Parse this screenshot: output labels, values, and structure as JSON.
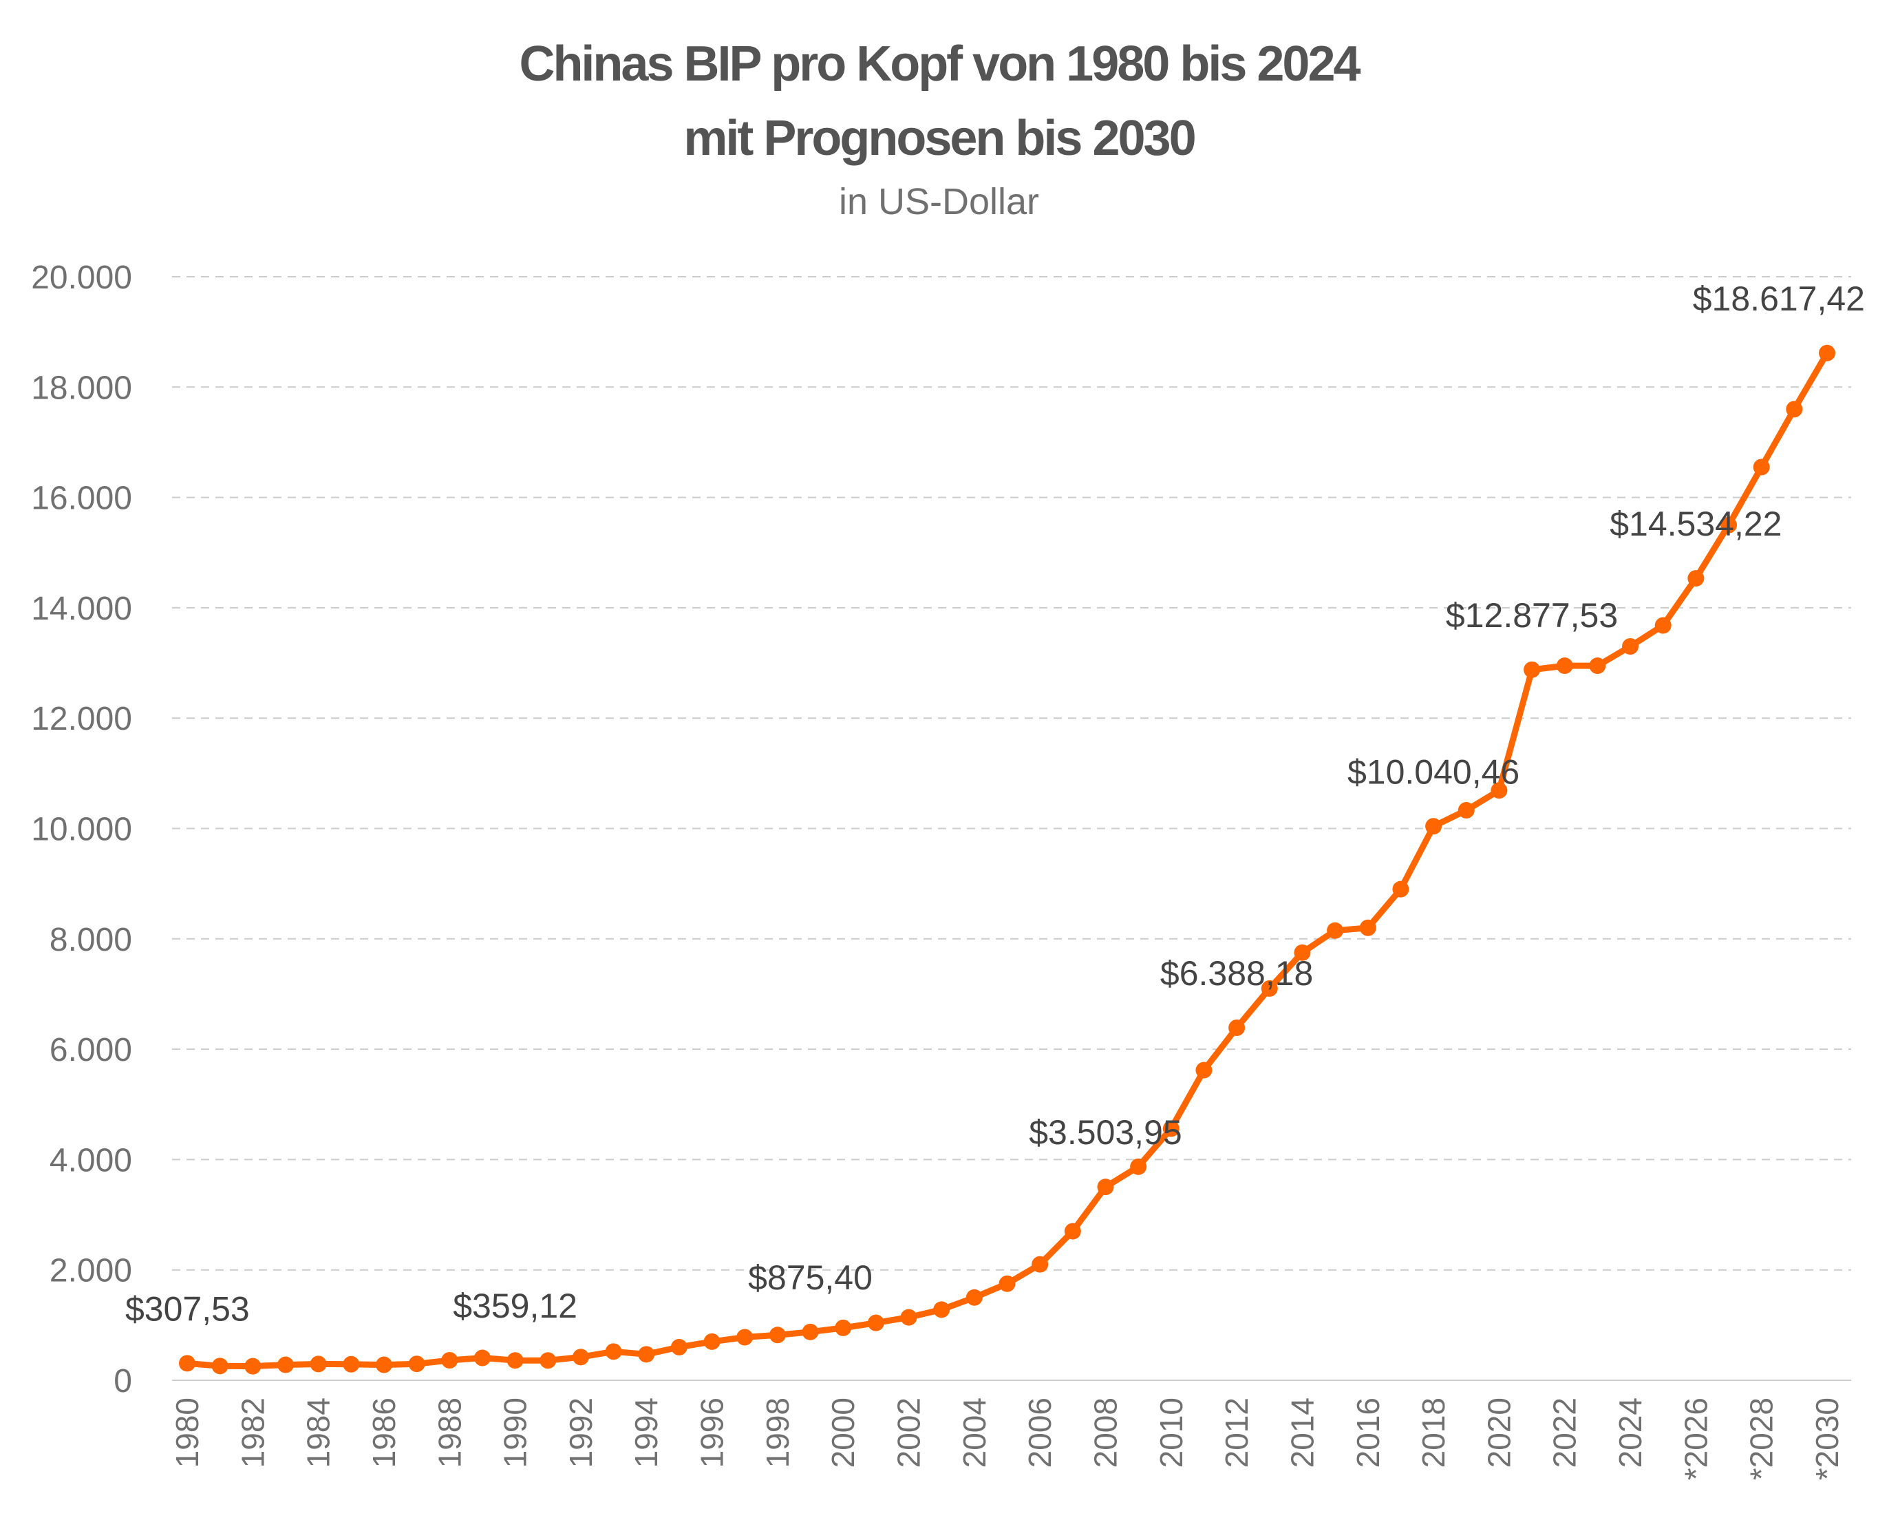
{
  "chart_data": {
    "type": "line",
    "title_line1": "Chinas BIP pro Kopf von 1980 bis 2024",
    "title_line2": "mit Prognosen bis 2030",
    "subtitle": "in US-Dollar",
    "xlabel": "",
    "ylabel": "",
    "ylim": [
      0,
      20000
    ],
    "yticks": [
      "0",
      "2.000",
      "4.000",
      "6.000",
      "8.000",
      "10.000",
      "12.000",
      "14.000",
      "16.000",
      "18.000",
      "20.000"
    ],
    "x": [
      1980,
      1981,
      1982,
      1983,
      1984,
      1985,
      1986,
      1987,
      1988,
      1989,
      1990,
      1991,
      1992,
      1993,
      1994,
      1995,
      1996,
      1997,
      1998,
      1999,
      2000,
      2001,
      2002,
      2003,
      2004,
      2005,
      2006,
      2007,
      2008,
      2009,
      2010,
      2011,
      2012,
      2013,
      2014,
      2015,
      2016,
      2017,
      2018,
      2019,
      2020,
      2021,
      2022,
      2023,
      2024,
      2025,
      2026,
      2027,
      2028,
      2029,
      2030
    ],
    "xtick_labels": [
      "1980",
      "1982",
      "1984",
      "1986",
      "1988",
      "1990",
      "1992",
      "1994",
      "1996",
      "1998",
      "2000",
      "2002",
      "2004",
      "2006",
      "2008",
      "2010",
      "2012",
      "2014",
      "2016",
      "2018",
      "2020",
      "2022",
      "2024",
      "*2026",
      "*2028",
      "*2030"
    ],
    "series": [
      {
        "color": "#FF6600",
        "values": [
          307.53,
          258,
          254,
          280,
          295,
          290,
          280,
          297,
          362,
          405,
          359.12,
          358,
          420,
          520,
          470,
          600,
          700,
          780,
          820,
          875.4,
          950,
          1040,
          1140,
          1280,
          1500,
          1750,
          2100,
          2700,
          3503.95,
          3870,
          4560,
          5620,
          6388.18,
          7100,
          7750,
          8150,
          8200,
          8900,
          10040.46,
          10330,
          10690,
          12877.53,
          12950,
          12950,
          13300,
          13680,
          14534.22,
          15500,
          16550,
          17600,
          18617.42
        ]
      }
    ],
    "data_labels": [
      {
        "year": 1980,
        "text": "$307,53"
      },
      {
        "year": 1990,
        "text": "$359,12"
      },
      {
        "year": 1999,
        "text": "$875,40"
      },
      {
        "year": 2008,
        "text": "$3.503,95"
      },
      {
        "year": 2012,
        "text": "$6.388,18"
      },
      {
        "year": 2018,
        "text": "$10.040,46"
      },
      {
        "year": 2021,
        "text": "$12.877,53"
      },
      {
        "year": 2026,
        "text": "$14.534,22"
      },
      {
        "year": 2030,
        "text": "$18.617,42"
      }
    ],
    "grid": true,
    "legend": "none"
  }
}
